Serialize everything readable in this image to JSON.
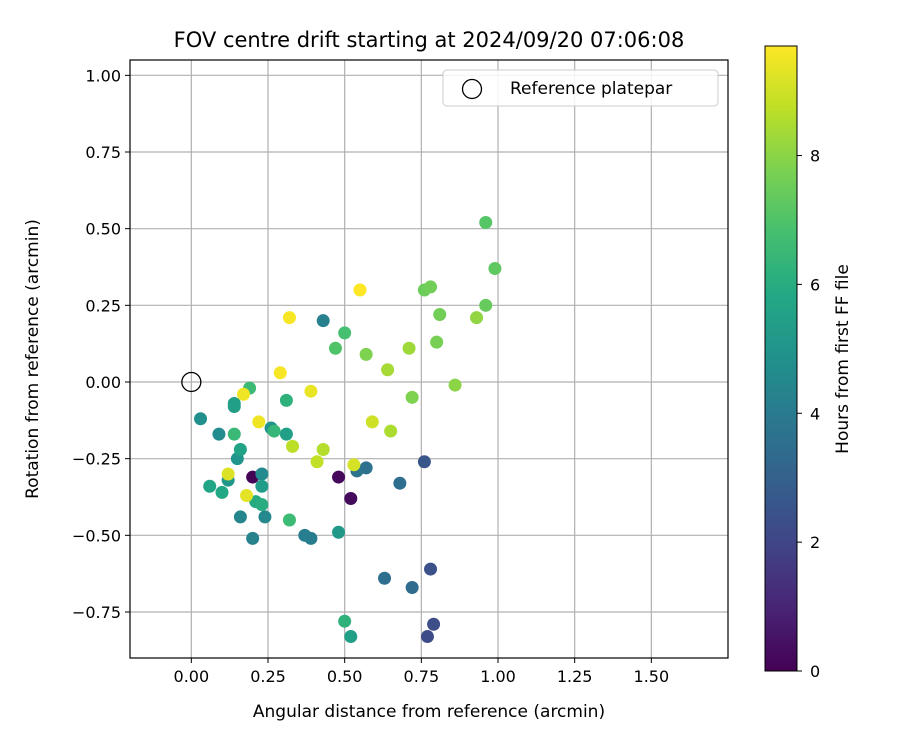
{
  "chart_data": {
    "type": "scatter",
    "title": "FOV centre drift starting at 2024/09/20 07:06:08",
    "xlabel": "Angular distance from reference (arcmin)",
    "ylabel": "Rotation from reference (arcmin)",
    "xlim": [
      -0.2,
      1.75
    ],
    "ylim": [
      -0.9,
      1.05
    ],
    "xticks": [
      "0.00",
      "0.25",
      "0.50",
      "0.75",
      "1.00",
      "1.25",
      "1.50"
    ],
    "yticks": [
      "1.00",
      "0.75",
      "0.50",
      "0.25",
      "0.00",
      "−0.25",
      "−0.50",
      "−0.75"
    ],
    "grid": true,
    "legend": {
      "placement": "top-right",
      "entries": [
        "Reference platepar"
      ]
    },
    "reference_point": {
      "x": 0.0,
      "y": 0.0,
      "marker": "hollow circle"
    },
    "colorbar": {
      "label": "Hours from first FF file",
      "colormap": "viridis",
      "range": [
        0,
        9.7
      ],
      "ticks": [
        "0",
        "2",
        "4",
        "6",
        "8"
      ]
    },
    "points": [
      {
        "x": 0.2,
        "y": -0.31,
        "hours": 0.1
      },
      {
        "x": 0.48,
        "y": -0.31,
        "hours": 0.2
      },
      {
        "x": 0.52,
        "y": -0.38,
        "hours": 0.3
      },
      {
        "x": 0.77,
        "y": -0.83,
        "hours": 2.2
      },
      {
        "x": 0.79,
        "y": -0.79,
        "hours": 2.3
      },
      {
        "x": 0.78,
        "y": -0.61,
        "hours": 2.4
      },
      {
        "x": 0.76,
        "y": -0.26,
        "hours": 2.6
      },
      {
        "x": 0.72,
        "y": -0.67,
        "hours": 3.4
      },
      {
        "x": 0.63,
        "y": -0.64,
        "hours": 3.5
      },
      {
        "x": 0.68,
        "y": -0.33,
        "hours": 3.5
      },
      {
        "x": 0.57,
        "y": -0.28,
        "hours": 3.6
      },
      {
        "x": 0.54,
        "y": -0.29,
        "hours": 3.7
      },
      {
        "x": 0.39,
        "y": -0.51,
        "hours": 4.0
      },
      {
        "x": 0.37,
        "y": -0.5,
        "hours": 4.1
      },
      {
        "x": 0.43,
        "y": 0.2,
        "hours": 4.2
      },
      {
        "x": 0.2,
        "y": -0.51,
        "hours": 4.3
      },
      {
        "x": 0.16,
        "y": -0.44,
        "hours": 4.4
      },
      {
        "x": 0.24,
        "y": -0.44,
        "hours": 4.5
      },
      {
        "x": 0.23,
        "y": -0.3,
        "hours": 4.6
      },
      {
        "x": 0.09,
        "y": -0.17,
        "hours": 4.7
      },
      {
        "x": 0.03,
        "y": -0.12,
        "hours": 4.8
      },
      {
        "x": 0.26,
        "y": -0.15,
        "hours": 4.9
      },
      {
        "x": 0.15,
        "y": -0.25,
        "hours": 5.0
      },
      {
        "x": 0.12,
        "y": -0.32,
        "hours": 5.1
      },
      {
        "x": 0.48,
        "y": -0.49,
        "hours": 5.2
      },
      {
        "x": 0.23,
        "y": -0.34,
        "hours": 5.3
      },
      {
        "x": 0.14,
        "y": -0.08,
        "hours": 5.4
      },
      {
        "x": 0.14,
        "y": -0.07,
        "hours": 5.5
      },
      {
        "x": 0.31,
        "y": -0.17,
        "hours": 5.5
      },
      {
        "x": 0.16,
        "y": -0.22,
        "hours": 5.6
      },
      {
        "x": 0.06,
        "y": -0.34,
        "hours": 5.7
      },
      {
        "x": 0.1,
        "y": -0.36,
        "hours": 5.8
      },
      {
        "x": 0.21,
        "y": -0.39,
        "hours": 5.9
      },
      {
        "x": 0.23,
        "y": -0.4,
        "hours": 6.0
      },
      {
        "x": 0.52,
        "y": -0.83,
        "hours": 5.5
      },
      {
        "x": 0.5,
        "y": -0.78,
        "hours": 6.2
      },
      {
        "x": 0.31,
        "y": -0.06,
        "hours": 6.2
      },
      {
        "x": 0.27,
        "y": -0.16,
        "hours": 6.4
      },
      {
        "x": 0.14,
        "y": -0.17,
        "hours": 6.5
      },
      {
        "x": 0.19,
        "y": -0.02,
        "hours": 6.6
      },
      {
        "x": 0.32,
        "y": -0.45,
        "hours": 6.6
      },
      {
        "x": 0.5,
        "y": 0.16,
        "hours": 6.8
      },
      {
        "x": 0.47,
        "y": 0.11,
        "hours": 7.0
      },
      {
        "x": 0.96,
        "y": 0.52,
        "hours": 7.1
      },
      {
        "x": 0.99,
        "y": 0.37,
        "hours": 7.3
      },
      {
        "x": 0.96,
        "y": 0.25,
        "hours": 7.4
      },
      {
        "x": 0.76,
        "y": 0.3,
        "hours": 7.5
      },
      {
        "x": 0.78,
        "y": 0.31,
        "hours": 7.6
      },
      {
        "x": 0.81,
        "y": 0.22,
        "hours": 7.6
      },
      {
        "x": 0.8,
        "y": 0.13,
        "hours": 7.7
      },
      {
        "x": 0.57,
        "y": 0.09,
        "hours": 7.8
      },
      {
        "x": 0.72,
        "y": -0.05,
        "hours": 7.8
      },
      {
        "x": 0.86,
        "y": -0.01,
        "hours": 8.0
      },
      {
        "x": 0.93,
        "y": 0.21,
        "hours": 8.1
      },
      {
        "x": 0.71,
        "y": 0.11,
        "hours": 8.3
      },
      {
        "x": 0.64,
        "y": 0.04,
        "hours": 8.4
      },
      {
        "x": 0.65,
        "y": -0.16,
        "hours": 8.5
      },
      {
        "x": 0.43,
        "y": -0.22,
        "hours": 8.6
      },
      {
        "x": 0.33,
        "y": -0.21,
        "hours": 8.7
      },
      {
        "x": 0.41,
        "y": -0.26,
        "hours": 8.8
      },
      {
        "x": 0.59,
        "y": -0.13,
        "hours": 9.0
      },
      {
        "x": 0.53,
        "y": -0.27,
        "hours": 9.1
      },
      {
        "x": 0.12,
        "y": -0.3,
        "hours": 9.2
      },
      {
        "x": 0.18,
        "y": -0.37,
        "hours": 9.3
      },
      {
        "x": 0.39,
        "y": -0.03,
        "hours": 9.4
      },
      {
        "x": 0.22,
        "y": -0.13,
        "hours": 9.5
      },
      {
        "x": 0.17,
        "y": -0.04,
        "hours": 9.5
      },
      {
        "x": 0.29,
        "y": 0.03,
        "hours": 9.6
      },
      {
        "x": 0.32,
        "y": 0.21,
        "hours": 9.6
      },
      {
        "x": 0.55,
        "y": 0.3,
        "hours": 9.7
      }
    ]
  }
}
